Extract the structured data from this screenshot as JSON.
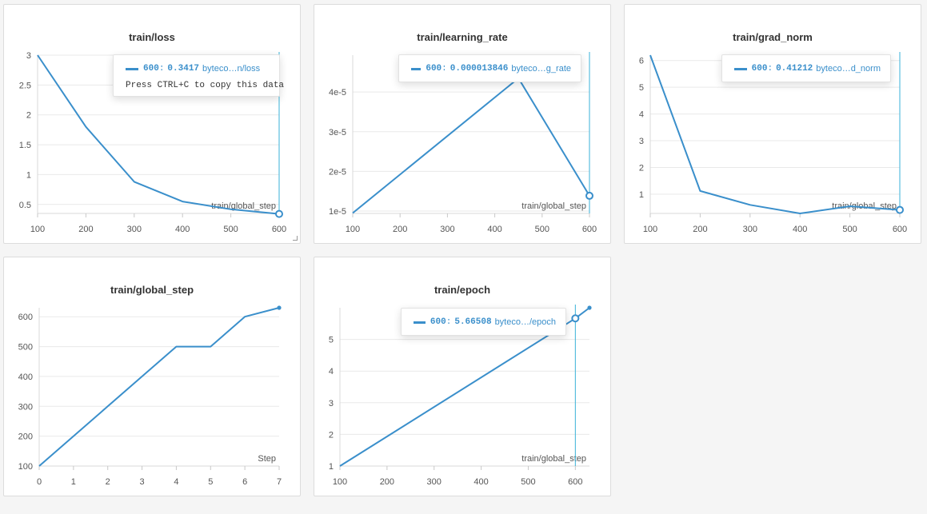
{
  "colors": {
    "series": "#3a8fcb",
    "grid": "#e9e9e9",
    "axis": "#d9d9d9",
    "cursor": "#38b2d8"
  },
  "panels": [
    {
      "title": "train/loss"
    },
    {
      "title": "train/learning_rate"
    },
    {
      "title": "train/grad_norm"
    },
    {
      "title": "train/global_step"
    },
    {
      "title": "train/epoch"
    }
  ],
  "tooltips": {
    "loss": {
      "step": "600",
      "sep": ":",
      "value": "0.3417",
      "name": "byteco…n/loss",
      "hint": "Press CTRL+C to copy this data"
    },
    "lr": {
      "step": "600",
      "sep": ":",
      "value": "0.000013846",
      "name": "byteco…g_rate"
    },
    "grad": {
      "step": "600",
      "sep": ":",
      "value": "0.41212",
      "name": "byteco…d_norm"
    },
    "epoch": {
      "step": "600",
      "sep": ":",
      "value": "5.66508",
      "name": "byteco…/epoch"
    }
  },
  "chart_data": [
    {
      "type": "line",
      "title": "train/loss",
      "xlabel": "train/global_step",
      "ylabel": "",
      "x": [
        100,
        200,
        300,
        400,
        500,
        600
      ],
      "series": [
        {
          "values": [
            3.0,
            1.8,
            0.88,
            0.55,
            0.42,
            0.3417
          ]
        }
      ],
      "xlim": [
        100,
        600
      ],
      "ylim": [
        0.35,
        3.0
      ],
      "xticks": [
        100,
        200,
        300,
        400,
        500,
        600
      ],
      "yticks": [
        0.5,
        1,
        1.5,
        2,
        2.5,
        3
      ],
      "ytick_labels": [
        "0.5",
        "1",
        "1.5",
        "2",
        "2.5",
        "3"
      ],
      "highlight_x": 600,
      "grid": true
    },
    {
      "type": "line",
      "title": "train/learning_rate",
      "xlabel": "train/global_step",
      "ylabel": "",
      "x": [
        100,
        450,
        600
      ],
      "series": [
        {
          "values": [
            9.5e-06,
            4.35e-05,
            1.3846e-05
          ]
        }
      ],
      "xlim": [
        100,
        600
      ],
      "ylim": [
        9.4e-06,
        4.93e-05
      ],
      "xticks": [
        100,
        200,
        300,
        400,
        500,
        600
      ],
      "yticks": [
        1e-05,
        2e-05,
        3e-05,
        4e-05
      ],
      "ytick_labels": [
        "1e-5",
        "2e-5",
        "3e-5",
        "4e-5"
      ],
      "highlight_x": 600,
      "grid": true
    },
    {
      "type": "line",
      "title": "train/grad_norm",
      "xlabel": "train/global_step",
      "ylabel": "",
      "x": [
        100,
        200,
        300,
        400,
        500,
        600
      ],
      "series": [
        {
          "values": [
            6.2,
            1.12,
            0.6,
            0.28,
            0.55,
            0.41212
          ]
        }
      ],
      "xlim": [
        100,
        600
      ],
      "ylim": [
        0.28,
        6.2
      ],
      "xticks": [
        100,
        200,
        300,
        400,
        500,
        600
      ],
      "yticks": [
        1,
        2,
        3,
        4,
        5,
        6
      ],
      "ytick_labels": [
        "1",
        "2",
        "3",
        "4",
        "5",
        "6"
      ],
      "highlight_x": 600,
      "grid": true
    },
    {
      "type": "line",
      "title": "train/global_step",
      "xlabel": "Step",
      "ylabel": "",
      "x": [
        0,
        1,
        2,
        3,
        4,
        5,
        6,
        7
      ],
      "series": [
        {
          "values": [
            100,
            200,
            300,
            400,
            500,
            500,
            600,
            630
          ]
        }
      ],
      "xlim": [
        0,
        7
      ],
      "ylim": [
        100,
        630
      ],
      "xticks": [
        0,
        1,
        2,
        3,
        4,
        5,
        6,
        7
      ],
      "yticks": [
        100,
        200,
        300,
        400,
        500,
        600
      ],
      "ytick_labels": [
        "100",
        "200",
        "300",
        "400",
        "500",
        "600"
      ],
      "end_marker": true,
      "grid": true
    },
    {
      "type": "line",
      "title": "train/epoch",
      "xlabel": "train/global_step",
      "ylabel": "",
      "x": [
        100,
        600,
        630
      ],
      "series": [
        {
          "values": [
            1.0,
            5.66508,
            6.0
          ]
        }
      ],
      "xlim": [
        100,
        630
      ],
      "ylim": [
        1.0,
        6.0
      ],
      "xticks": [
        100,
        200,
        300,
        400,
        500,
        600
      ],
      "yticks": [
        1,
        2,
        3,
        4,
        5
      ],
      "ytick_labels": [
        "1",
        "2",
        "3",
        "4",
        "5"
      ],
      "highlight_x": 600,
      "end_marker": true,
      "grid": true
    }
  ]
}
